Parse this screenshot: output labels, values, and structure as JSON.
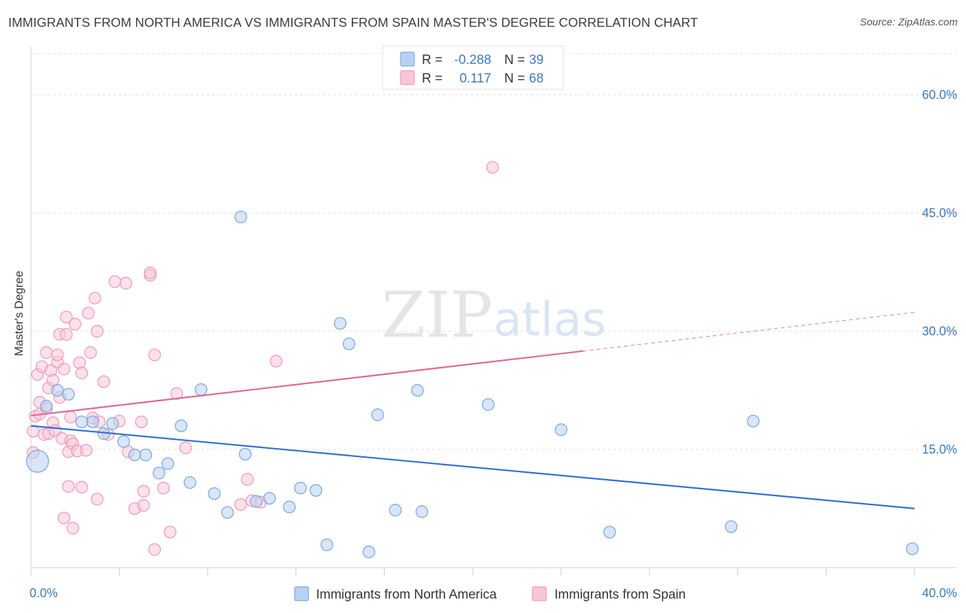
{
  "title": "IMMIGRANTS FROM NORTH AMERICA VS IMMIGRANTS FROM SPAIN MASTER'S DEGREE CORRELATION CHART",
  "source": "Source: ZipAtlas.com",
  "watermark": {
    "zip": "ZIP",
    "atlas": "atlas"
  },
  "legend_top": [
    {
      "r_label": "R = ",
      "r_value": "-0.288",
      "n_label": "N = ",
      "n_value": "39"
    },
    {
      "r_label": "R = ",
      "r_value": "0.117",
      "n_label": "N = ",
      "n_value": "68"
    }
  ],
  "colors": {
    "blue_fill": "#b8d1f3",
    "blue_stroke": "#7aa7e0",
    "blue_line": "#2f6fd0",
    "pink_fill": "#f8c6d5",
    "pink_stroke": "#ee9ab4",
    "pink_line": "#e0668f",
    "tick_text": "#3b78c7",
    "grid": "#dddddd"
  },
  "chart_data": {
    "type": "scatter",
    "title": "IMMIGRANTS FROM NORTH AMERICA VS IMMIGRANTS FROM SPAIN MASTER'S DEGREE CORRELATION CHART",
    "xlabel": "",
    "ylabel": "Master's Degree",
    "xlim": [
      0,
      40
    ],
    "ylim": [
      0,
      63
    ],
    "x_ticks": [
      "0.0%",
      "40.0%"
    ],
    "y_ticks": [
      {
        "value": 15,
        "label": "15.0%"
      },
      {
        "value": 30,
        "label": "30.0%"
      },
      {
        "value": 45,
        "label": "45.0%"
      },
      {
        "value": 60,
        "label": "60.0%"
      }
    ],
    "grid": true,
    "legend_position": "bottom",
    "series": [
      {
        "name": "Immigrants from North America",
        "color": "#b8d1f3",
        "trend": {
          "x": [
            0,
            40
          ],
          "y": [
            18.0,
            7.5
          ],
          "solid_to": 40
        },
        "points": [
          {
            "x": 0.3,
            "y": 13.5,
            "big": true
          },
          {
            "x": 0.7,
            "y": 20.5
          },
          {
            "x": 1.2,
            "y": 22.5
          },
          {
            "x": 1.7,
            "y": 22.0
          },
          {
            "x": 2.3,
            "y": 18.5
          },
          {
            "x": 2.8,
            "y": 18.5
          },
          {
            "x": 3.3,
            "y": 17.0
          },
          {
            "x": 3.7,
            "y": 18.3
          },
          {
            "x": 4.2,
            "y": 16.0
          },
          {
            "x": 4.7,
            "y": 14.3
          },
          {
            "x": 5.2,
            "y": 14.3
          },
          {
            "x": 5.8,
            "y": 12.0
          },
          {
            "x": 6.2,
            "y": 13.2
          },
          {
            "x": 6.8,
            "y": 18.0
          },
          {
            "x": 7.2,
            "y": 10.8
          },
          {
            "x": 7.7,
            "y": 22.6
          },
          {
            "x": 8.3,
            "y": 9.4
          },
          {
            "x": 8.9,
            "y": 7.0
          },
          {
            "x": 9.5,
            "y": 44.5
          },
          {
            "x": 9.7,
            "y": 14.4
          },
          {
            "x": 10.2,
            "y": 8.4
          },
          {
            "x": 10.8,
            "y": 8.8
          },
          {
            "x": 11.7,
            "y": 7.7
          },
          {
            "x": 12.2,
            "y": 10.1
          },
          {
            "x": 12.9,
            "y": 9.8
          },
          {
            "x": 13.4,
            "y": 2.9
          },
          {
            "x": 14.0,
            "y": 31.0
          },
          {
            "x": 14.4,
            "y": 28.4
          },
          {
            "x": 15.3,
            "y": 2.0
          },
          {
            "x": 15.7,
            "y": 19.4
          },
          {
            "x": 16.5,
            "y": 7.3
          },
          {
            "x": 17.5,
            "y": 22.5
          },
          {
            "x": 17.7,
            "y": 7.1
          },
          {
            "x": 20.7,
            "y": 20.7
          },
          {
            "x": 24.0,
            "y": 17.5
          },
          {
            "x": 26.2,
            "y": 4.5
          },
          {
            "x": 31.7,
            "y": 5.2
          },
          {
            "x": 32.7,
            "y": 18.6
          },
          {
            "x": 39.9,
            "y": 2.4
          }
        ]
      },
      {
        "name": "Immigrants from Spain",
        "color": "#f8c6d5",
        "trend": {
          "x": [
            0,
            40
          ],
          "y": [
            19.3,
            32.4
          ],
          "solid_to": 25
        },
        "points": [
          {
            "x": 0.1,
            "y": 14.6
          },
          {
            "x": 0.1,
            "y": 17.3
          },
          {
            "x": 0.2,
            "y": 19.2
          },
          {
            "x": 0.3,
            "y": 24.5
          },
          {
            "x": 0.4,
            "y": 19.5
          },
          {
            "x": 0.4,
            "y": 21.0
          },
          {
            "x": 0.5,
            "y": 25.5
          },
          {
            "x": 0.6,
            "y": 16.9
          },
          {
            "x": 0.7,
            "y": 20.2
          },
          {
            "x": 0.7,
            "y": 27.3
          },
          {
            "x": 0.8,
            "y": 22.8
          },
          {
            "x": 0.8,
            "y": 17.0
          },
          {
            "x": 0.9,
            "y": 25.0
          },
          {
            "x": 1.0,
            "y": 18.4
          },
          {
            "x": 1.0,
            "y": 23.8
          },
          {
            "x": 1.1,
            "y": 17.4
          },
          {
            "x": 1.2,
            "y": 26.1
          },
          {
            "x": 1.2,
            "y": 27.0
          },
          {
            "x": 1.3,
            "y": 21.6
          },
          {
            "x": 1.3,
            "y": 29.6
          },
          {
            "x": 1.4,
            "y": 16.4
          },
          {
            "x": 1.5,
            "y": 25.2
          },
          {
            "x": 1.5,
            "y": 6.3
          },
          {
            "x": 1.6,
            "y": 31.8
          },
          {
            "x": 1.6,
            "y": 29.6
          },
          {
            "x": 1.7,
            "y": 14.7
          },
          {
            "x": 1.7,
            "y": 10.3
          },
          {
            "x": 1.8,
            "y": 19.1
          },
          {
            "x": 1.8,
            "y": 16.1
          },
          {
            "x": 1.9,
            "y": 5.0
          },
          {
            "x": 1.9,
            "y": 15.7
          },
          {
            "x": 2.0,
            "y": 30.9
          },
          {
            "x": 2.1,
            "y": 14.8
          },
          {
            "x": 2.2,
            "y": 26.0
          },
          {
            "x": 2.3,
            "y": 10.2
          },
          {
            "x": 2.3,
            "y": 24.7
          },
          {
            "x": 2.5,
            "y": 14.9
          },
          {
            "x": 2.6,
            "y": 32.3
          },
          {
            "x": 2.7,
            "y": 27.3
          },
          {
            "x": 2.8,
            "y": 19.0
          },
          {
            "x": 2.9,
            "y": 34.2
          },
          {
            "x": 3.0,
            "y": 30.0
          },
          {
            "x": 3.0,
            "y": 8.7
          },
          {
            "x": 3.1,
            "y": 18.5
          },
          {
            "x": 3.3,
            "y": 23.6
          },
          {
            "x": 3.5,
            "y": 16.9
          },
          {
            "x": 3.8,
            "y": 36.3
          },
          {
            "x": 4.0,
            "y": 18.6
          },
          {
            "x": 4.3,
            "y": 36.1
          },
          {
            "x": 4.4,
            "y": 14.7
          },
          {
            "x": 4.7,
            "y": 7.5
          },
          {
            "x": 5.0,
            "y": 18.5
          },
          {
            "x": 5.1,
            "y": 7.9
          },
          {
            "x": 5.1,
            "y": 9.7
          },
          {
            "x": 5.4,
            "y": 37.1
          },
          {
            "x": 5.4,
            "y": 37.4
          },
          {
            "x": 5.6,
            "y": 27.0
          },
          {
            "x": 5.6,
            "y": 2.3
          },
          {
            "x": 6.0,
            "y": 10.1
          },
          {
            "x": 6.3,
            "y": 4.5
          },
          {
            "x": 6.6,
            "y": 22.1
          },
          {
            "x": 7.0,
            "y": 15.2
          },
          {
            "x": 9.5,
            "y": 8.0
          },
          {
            "x": 9.8,
            "y": 11.2
          },
          {
            "x": 10.0,
            "y": 8.5
          },
          {
            "x": 10.4,
            "y": 8.3
          },
          {
            "x": 11.1,
            "y": 26.2
          },
          {
            "x": 20.9,
            "y": 50.8
          }
        ]
      }
    ]
  }
}
